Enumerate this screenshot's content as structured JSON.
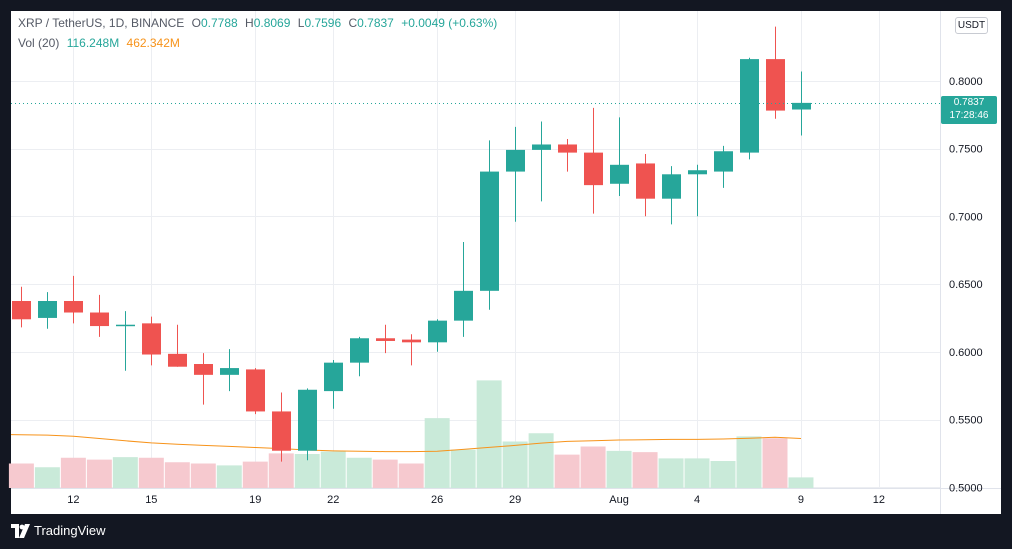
{
  "legend": {
    "symbol": "XRP / TetherUS, 1D, BINANCE",
    "o_label": "O",
    "o_value": "0.7788",
    "h_label": "H",
    "h_value": "0.8069",
    "l_label": "L",
    "l_value": "0.7596",
    "c_label": "C",
    "c_value": "0.7837",
    "change": "+0.0049 (+0.63%)",
    "vol_label": "Vol (20)",
    "vol_value": "116.248M",
    "vol_ma_value": "462.342M"
  },
  "currency": "USDT",
  "price_tag": {
    "price": "0.7837",
    "countdown": "17:28:46"
  },
  "brand": "TradingView",
  "colors": {
    "up": "#26a69a",
    "down": "#ef5350",
    "vol_up": "#c9ead9",
    "vol_down": "#f6c9cf",
    "vol_ma": "#f7931a",
    "grid": "#eceef2",
    "background": "#ffffff",
    "frame": "#131722"
  },
  "chart_data": {
    "type": "candlestick",
    "symbol": "XRP/USDT",
    "interval": "1D",
    "exchange": "BINANCE",
    "y_axis": {
      "ticks": [
        0.5,
        0.55,
        0.6,
        0.65,
        0.7,
        0.75,
        0.8
      ],
      "tick_labels": [
        "0.5000",
        "0.5500",
        "0.6000",
        "0.6500",
        "0.7000",
        "0.7500",
        "0.8000"
      ],
      "range": [
        0.4995,
        0.8515
      ]
    },
    "x_axis": {
      "ticks": [
        2,
        5,
        9,
        12,
        16,
        19,
        23,
        26,
        30,
        33
      ],
      "tick_labels": [
        "12",
        "15",
        "19",
        "22",
        "26",
        "29",
        "Aug",
        "4",
        "9",
        "12"
      ],
      "range": [
        -0.4,
        35.35
      ]
    },
    "candles": [
      {
        "day": 0,
        "open": 0.6375,
        "high": 0.648,
        "low": 0.618,
        "close": 0.624
      },
      {
        "day": 1,
        "open": 0.625,
        "high": 0.644,
        "low": 0.617,
        "close": 0.6375
      },
      {
        "day": 2,
        "open": 0.6375,
        "high": 0.656,
        "low": 0.621,
        "close": 0.629
      },
      {
        "day": 3,
        "open": 0.629,
        "high": 0.642,
        "low": 0.611,
        "close": 0.619
      },
      {
        "day": 4,
        "open": 0.6195,
        "high": 0.63,
        "low": 0.586,
        "close": 0.62
      },
      {
        "day": 5,
        "open": 0.621,
        "high": 0.626,
        "low": 0.59,
        "close": 0.598
      },
      {
        "day": 6,
        "open": 0.5985,
        "high": 0.62,
        "low": 0.589,
        "close": 0.589
      },
      {
        "day": 7,
        "open": 0.591,
        "high": 0.599,
        "low": 0.561,
        "close": 0.583
      },
      {
        "day": 8,
        "open": 0.583,
        "high": 0.602,
        "low": 0.571,
        "close": 0.588
      },
      {
        "day": 9,
        "open": 0.587,
        "high": 0.588,
        "low": 0.554,
        "close": 0.556
      },
      {
        "day": 10,
        "open": 0.556,
        "high": 0.57,
        "low": 0.519,
        "close": 0.527
      },
      {
        "day": 11,
        "open": 0.527,
        "high": 0.573,
        "low": 0.52,
        "close": 0.572
      },
      {
        "day": 12,
        "open": 0.571,
        "high": 0.594,
        "low": 0.558,
        "close": 0.592
      },
      {
        "day": 13,
        "open": 0.592,
        "high": 0.611,
        "low": 0.582,
        "close": 0.61
      },
      {
        "day": 14,
        "open": 0.61,
        "high": 0.62,
        "low": 0.599,
        "close": 0.608
      },
      {
        "day": 15,
        "open": 0.609,
        "high": 0.613,
        "low": 0.59,
        "close": 0.607
      },
      {
        "day": 16,
        "open": 0.607,
        "high": 0.624,
        "low": 0.6,
        "close": 0.623
      },
      {
        "day": 17,
        "open": 0.623,
        "high": 0.681,
        "low": 0.611,
        "close": 0.645
      },
      {
        "day": 18,
        "open": 0.645,
        "high": 0.756,
        "low": 0.631,
        "close": 0.733
      },
      {
        "day": 19,
        "open": 0.733,
        "high": 0.766,
        "low": 0.696,
        "close": 0.749
      },
      {
        "day": 20,
        "open": 0.749,
        "high": 0.77,
        "low": 0.711,
        "close": 0.753
      },
      {
        "day": 21,
        "open": 0.753,
        "high": 0.757,
        "low": 0.733,
        "close": 0.747
      },
      {
        "day": 22,
        "open": 0.747,
        "high": 0.78,
        "low": 0.702,
        "close": 0.723
      },
      {
        "day": 23,
        "open": 0.724,
        "high": 0.773,
        "low": 0.715,
        "close": 0.738
      },
      {
        "day": 24,
        "open": 0.739,
        "high": 0.746,
        "low": 0.7,
        "close": 0.713
      },
      {
        "day": 25,
        "open": 0.713,
        "high": 0.737,
        "low": 0.694,
        "close": 0.731
      },
      {
        "day": 26,
        "open": 0.731,
        "high": 0.738,
        "low": 0.7,
        "close": 0.734
      },
      {
        "day": 27,
        "open": 0.733,
        "high": 0.752,
        "low": 0.721,
        "close": 0.748
      },
      {
        "day": 28,
        "open": 0.747,
        "high": 0.817,
        "low": 0.742,
        "close": 0.816
      },
      {
        "day": 29,
        "open": 0.816,
        "high": 0.84,
        "low": 0.772,
        "close": 0.778
      },
      {
        "day": 30,
        "open": 0.7788,
        "high": 0.8069,
        "low": 0.7596,
        "close": 0.7837
      }
    ],
    "volume": [
      {
        "day": 0,
        "value": 0.196,
        "direction": "down"
      },
      {
        "day": 1,
        "value": 0.166,
        "direction": "up"
      },
      {
        "day": 2,
        "value": 0.242,
        "direction": "down"
      },
      {
        "day": 3,
        "value": 0.227,
        "direction": "down"
      },
      {
        "day": 4,
        "value": 0.247,
        "direction": "up"
      },
      {
        "day": 5,
        "value": 0.242,
        "direction": "down"
      },
      {
        "day": 6,
        "value": 0.206,
        "direction": "down"
      },
      {
        "day": 7,
        "value": 0.196,
        "direction": "down"
      },
      {
        "day": 8,
        "value": 0.181,
        "direction": "up"
      },
      {
        "day": 9,
        "value": 0.211,
        "direction": "down"
      },
      {
        "day": 10,
        "value": 0.277,
        "direction": "down"
      },
      {
        "day": 11,
        "value": 0.272,
        "direction": "up"
      },
      {
        "day": 12,
        "value": 0.292,
        "direction": "up"
      },
      {
        "day": 13,
        "value": 0.242,
        "direction": "up"
      },
      {
        "day": 14,
        "value": 0.227,
        "direction": "down"
      },
      {
        "day": 15,
        "value": 0.196,
        "direction": "down"
      },
      {
        "day": 16,
        "value": 0.559,
        "direction": "up"
      },
      {
        "day": 17,
        "value": 0.307,
        "direction": "up"
      },
      {
        "day": 18,
        "value": 0.861,
        "direction": "up"
      },
      {
        "day": 19,
        "value": 0.372,
        "direction": "up"
      },
      {
        "day": 20,
        "value": 0.438,
        "direction": "up"
      },
      {
        "day": 21,
        "value": 0.267,
        "direction": "down"
      },
      {
        "day": 22,
        "value": 0.332,
        "direction": "down"
      },
      {
        "day": 23,
        "value": 0.297,
        "direction": "up"
      },
      {
        "day": 24,
        "value": 0.287,
        "direction": "down"
      },
      {
        "day": 25,
        "value": 0.237,
        "direction": "up"
      },
      {
        "day": 26,
        "value": 0.237,
        "direction": "up"
      },
      {
        "day": 27,
        "value": 0.216,
        "direction": "up"
      },
      {
        "day": 28,
        "value": 0.413,
        "direction": "up"
      },
      {
        "day": 29,
        "value": 0.398,
        "direction": "down"
      },
      {
        "day": 30,
        "value": 0.085,
        "direction": "up"
      }
    ],
    "volume_ma": [
      0.427,
      0.423,
      0.414,
      0.396,
      0.378,
      0.361,
      0.35,
      0.341,
      0.333,
      0.324,
      0.315,
      0.304,
      0.297,
      0.294,
      0.291,
      0.291,
      0.294,
      0.309,
      0.325,
      0.341,
      0.359,
      0.373,
      0.378,
      0.384,
      0.386,
      0.389,
      0.389,
      0.392,
      0.398,
      0.406,
      0.396
    ]
  }
}
